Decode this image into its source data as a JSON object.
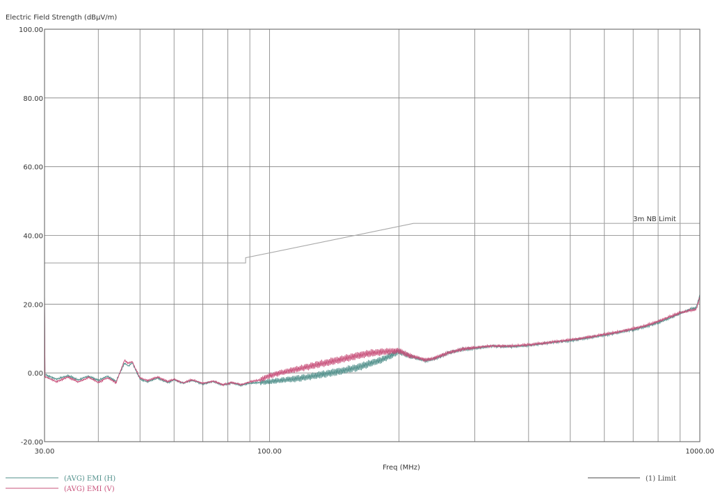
{
  "chart_data": {
    "type": "line",
    "ylabel": "Electric Field Strength (dBµV/m)",
    "xlabel": "Freq (MHz)",
    "x_scale": "log",
    "xlim": [
      30,
      1000
    ],
    "ylim": [
      -20,
      100
    ],
    "y_ticks": [
      -20,
      0,
      20,
      40,
      60,
      80,
      100
    ],
    "y_tick_labels": [
      "-20.00",
      "0.00",
      "20.00",
      "40.00",
      "60.00",
      "80.00",
      "100.00"
    ],
    "x_tick_labels": [
      {
        "x": 30,
        "label": "30.00"
      },
      {
        "x": 100,
        "label": "100.00"
      },
      {
        "x": 1000,
        "label": "1000.00"
      }
    ],
    "x_gridlines": [
      40,
      50,
      60,
      70,
      80,
      90,
      100,
      200,
      300,
      400,
      500,
      600,
      700,
      800,
      900
    ],
    "grid": true,
    "series": [
      {
        "name": "(AVG) EMI (H)",
        "color": "#4f8f8a",
        "x": [
          30,
          32,
          34,
          36,
          38,
          40,
          42,
          44,
          46,
          47,
          48,
          50,
          52,
          55,
          58,
          60,
          63,
          66,
          70,
          74,
          78,
          82,
          86,
          90,
          95,
          100,
          110,
          120,
          130,
          140,
          150,
          160,
          170,
          180,
          190,
          200,
          210,
          220,
          230,
          240,
          250,
          260,
          280,
          300,
          330,
          360,
          400,
          430,
          460,
          500,
          550,
          600,
          650,
          700,
          750,
          800,
          850,
          900,
          950,
          980,
          1000
        ],
        "y": [
          -0.5,
          -1.8,
          -0.8,
          -2.0,
          -0.9,
          -2.2,
          -1.0,
          -2.4,
          2.8,
          2.0,
          2.9,
          -1.8,
          -2.6,
          -1.5,
          -2.8,
          -2.0,
          -3.0,
          -2.2,
          -3.2,
          -2.5,
          -3.5,
          -2.9,
          -3.6,
          -3.0,
          -2.8,
          -2.5,
          -2.0,
          -1.4,
          -0.6,
          0.1,
          0.8,
          1.6,
          2.6,
          3.6,
          4.8,
          6.3,
          5.0,
          4.3,
          3.6,
          4.0,
          4.8,
          5.8,
          6.8,
          7.2,
          7.8,
          7.6,
          8.0,
          8.5,
          9.0,
          9.4,
          10.2,
          11.0,
          11.8,
          12.6,
          13.5,
          14.6,
          15.9,
          17.3,
          18.6,
          18.9,
          22.5
        ]
      },
      {
        "name": "(AVG) EMI (V)",
        "color": "#c8507a",
        "x": [
          30,
          32,
          34,
          36,
          38,
          40,
          42,
          44,
          46,
          47,
          48,
          50,
          52,
          55,
          58,
          60,
          63,
          66,
          70,
          74,
          78,
          82,
          86,
          90,
          95,
          100,
          110,
          120,
          130,
          140,
          150,
          160,
          170,
          180,
          190,
          200,
          210,
          220,
          230,
          240,
          250,
          260,
          280,
          300,
          330,
          360,
          400,
          430,
          460,
          500,
          550,
          600,
          650,
          700,
          750,
          800,
          850,
          900,
          950,
          980,
          1000
        ],
        "y": [
          -1.0,
          -2.5,
          -1.2,
          -2.6,
          -1.3,
          -2.8,
          -1.4,
          -2.9,
          3.6,
          2.8,
          3.2,
          -1.5,
          -2.2,
          -1.2,
          -2.5,
          -1.8,
          -2.9,
          -2.0,
          -3.0,
          -2.4,
          -3.4,
          -2.8,
          -3.4,
          -2.6,
          -2.0,
          -0.8,
          0.5,
          1.5,
          2.5,
          3.4,
          4.2,
          5.0,
          5.7,
          6.0,
          6.3,
          6.5,
          5.2,
          4.5,
          3.8,
          4.2,
          5.0,
          5.9,
          6.9,
          7.4,
          7.9,
          7.8,
          8.2,
          8.6,
          9.1,
          9.6,
          10.4,
          11.2,
          12.0,
          12.9,
          13.8,
          15.0,
          16.3,
          17.5,
          18.2,
          18.4,
          22.0
        ]
      },
      {
        "name": "(1) Limit",
        "color": "#a8a8a8",
        "x": [
          30,
          88,
          88,
          216,
          1000
        ],
        "y": [
          32,
          32,
          33.5,
          43.5,
          43.5
        ]
      }
    ],
    "annotations": [
      {
        "text": "3m NB Limit",
        "x": 700,
        "y": 43.5
      }
    ],
    "legend": [
      {
        "label": "(AVG) EMI (H)",
        "color": "#4f8f8a",
        "placement": "bottom-left"
      },
      {
        "label": "(AVG) EMI (V)",
        "color": "#c8507a",
        "placement": "bottom-left"
      },
      {
        "label": "(1) Limit",
        "color": "#4a4a4a",
        "placement": "bottom-right"
      }
    ]
  }
}
